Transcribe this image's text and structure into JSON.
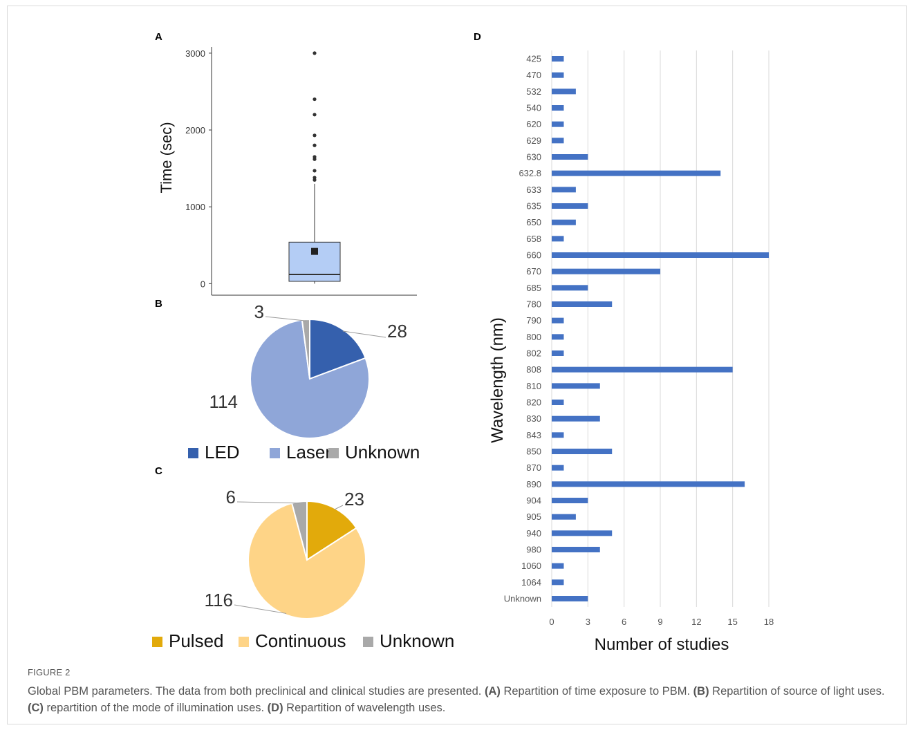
{
  "panels": {
    "A": {
      "letter": "A",
      "chart_data": {
        "type": "box",
        "ylabel": "Time (sec)",
        "y_ticks": [
          0,
          1000,
          2000,
          3000
        ],
        "ylim": [
          -150,
          3080
        ],
        "q1": 30,
        "median": 120,
        "q3": 540,
        "mean": 420,
        "whisker_low": 0,
        "whisker_high": 1300,
        "outliers": [
          1350,
          1380,
          1470,
          1620,
          1650,
          1800,
          1930,
          2200,
          2400,
          3000
        ],
        "colors": {
          "box": "#b4cdf5"
        }
      }
    },
    "B": {
      "letter": "B",
      "chart_data": {
        "type": "pie",
        "slices": [
          {
            "label": "LED",
            "value": 28,
            "color": "#3560ad"
          },
          {
            "label": "Laser",
            "value": 114,
            "color": "#8fa6d8"
          },
          {
            "label": "Unknown",
            "value": 3,
            "color": "#a9a9a9"
          }
        ],
        "legend": "bottom"
      }
    },
    "C": {
      "letter": "C",
      "chart_data": {
        "type": "pie",
        "slices": [
          {
            "label": "Pulsed",
            "value": 23,
            "color": "#e2aa0b"
          },
          {
            "label": "Continuous",
            "value": 116,
            "color": "#fed487"
          },
          {
            "label": "Unknown",
            "value": 6,
            "color": "#a9a9a9"
          }
        ],
        "legend": "bottom"
      }
    },
    "D": {
      "letter": "D",
      "chart_data": {
        "type": "bar",
        "orientation": "horizontal",
        "xlabel": "Number of studies",
        "ylabel": "Wavelength (nm)",
        "x_ticks": [
          0,
          3,
          6,
          9,
          12,
          15,
          18
        ],
        "xlim": [
          0,
          18
        ],
        "grid": true,
        "categories": [
          "425",
          "470",
          "532",
          "540",
          "620",
          "629",
          "630",
          "632.8",
          "633",
          "635",
          "650",
          "658",
          "660",
          "670",
          "685",
          "780",
          "790",
          "800",
          "802",
          "808",
          "810",
          "820",
          "830",
          "843",
          "850",
          "870",
          "890",
          "904",
          "905",
          "940",
          "980",
          "1060",
          "1064",
          "Unknown"
        ],
        "values": [
          1,
          1,
          2,
          1,
          1,
          1,
          3,
          14,
          2,
          3,
          2,
          1,
          18,
          9,
          3,
          5,
          1,
          1,
          1,
          15,
          4,
          1,
          4,
          1,
          5,
          1,
          16,
          3,
          2,
          5,
          4,
          1,
          1,
          3
        ],
        "colors": {
          "bar": "#4472c4"
        }
      }
    }
  },
  "caption": {
    "figure_label": "FIGURE 2",
    "parts": [
      {
        "text": "Global PBM parameters. The data from both preclinical and clinical studies are presented. ",
        "bold": false
      },
      {
        "text": "(A)",
        "bold": true
      },
      {
        "text": " Repartition of time exposure to PBM. ",
        "bold": false
      },
      {
        "text": "(B)",
        "bold": true
      },
      {
        "text": " Repartition of source of light uses. ",
        "bold": false
      },
      {
        "text": "(C)",
        "bold": true
      },
      {
        "text": " repartition of the mode of illumination uses. ",
        "bold": false
      },
      {
        "text": "(D)",
        "bold": true
      },
      {
        "text": " Repartition of wavelength uses.",
        "bold": false
      }
    ]
  }
}
